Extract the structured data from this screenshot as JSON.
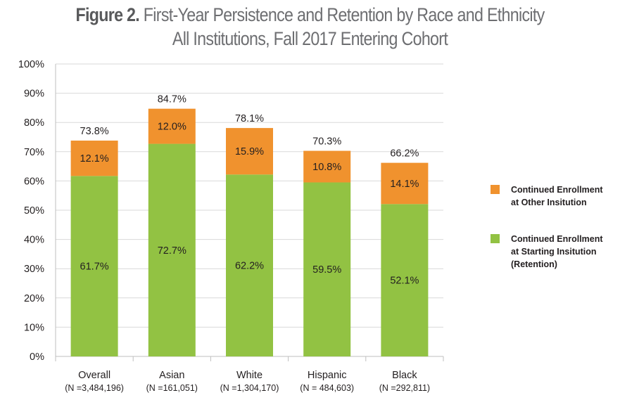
{
  "title": {
    "label": "Figure 2.",
    "line1_rest": " First-Year Persistence and Retention by Race and Ethnicity",
    "line2": "All Institutions, Fall 2017 Entering Cohort"
  },
  "colors": {
    "retention": "#92c243",
    "other": "#f0922e",
    "grid": "#d9d9d9",
    "axis": "#bfbfbf",
    "text": "#231f20"
  },
  "legend": {
    "other_line1": "Continued Enrollment",
    "other_line2": "at Other Insitution",
    "retention_line1": "Continued Enrollment",
    "retention_line2": "at Starting Insitution",
    "retention_line3": "(Retention)"
  },
  "chart_data": {
    "type": "bar",
    "stacked": true,
    "title": "Figure 2. First-Year Persistence and Retention by Race and Ethnicity — All Institutions, Fall 2017 Entering Cohort",
    "categories": [
      "Overall",
      "Asian",
      "White",
      "Hispanic",
      "Black"
    ],
    "category_sublabels": [
      "(N =3,484,196)",
      "(N =161,051)",
      "(N =1,304,170)",
      "(N = 484,603)",
      "(N =292,811)"
    ],
    "series": [
      {
        "name": "Continued Enrollment at Starting Insitution (Retention)",
        "values": [
          61.7,
          72.7,
          62.2,
          59.5,
          52.1
        ],
        "labels": [
          "61.7%",
          "72.7%",
          "62.2%",
          "59.5%",
          "52.1%"
        ]
      },
      {
        "name": "Continued Enrollment at Other Insitution",
        "values": [
          12.1,
          12.0,
          15.9,
          10.8,
          14.1
        ],
        "labels": [
          "12.1%",
          "12.0%",
          "15.9%",
          "10.8%",
          "14.1%"
        ]
      }
    ],
    "totals": [
      73.8,
      84.7,
      78.1,
      70.3,
      66.2
    ],
    "total_labels": [
      "73.8%",
      "84.7%",
      "78.1%",
      "70.3%",
      "66.2%"
    ],
    "ylim": [
      0,
      100
    ],
    "yticks": [
      0,
      10,
      20,
      30,
      40,
      50,
      60,
      70,
      80,
      90,
      100
    ],
    "ytick_labels": [
      "0%",
      "10%",
      "20%",
      "30%",
      "40%",
      "50%",
      "60%",
      "70%",
      "80%",
      "90%",
      "100%"
    ],
    "grid": true,
    "xlabel": "",
    "ylabel": "",
    "legend_position": "right"
  }
}
